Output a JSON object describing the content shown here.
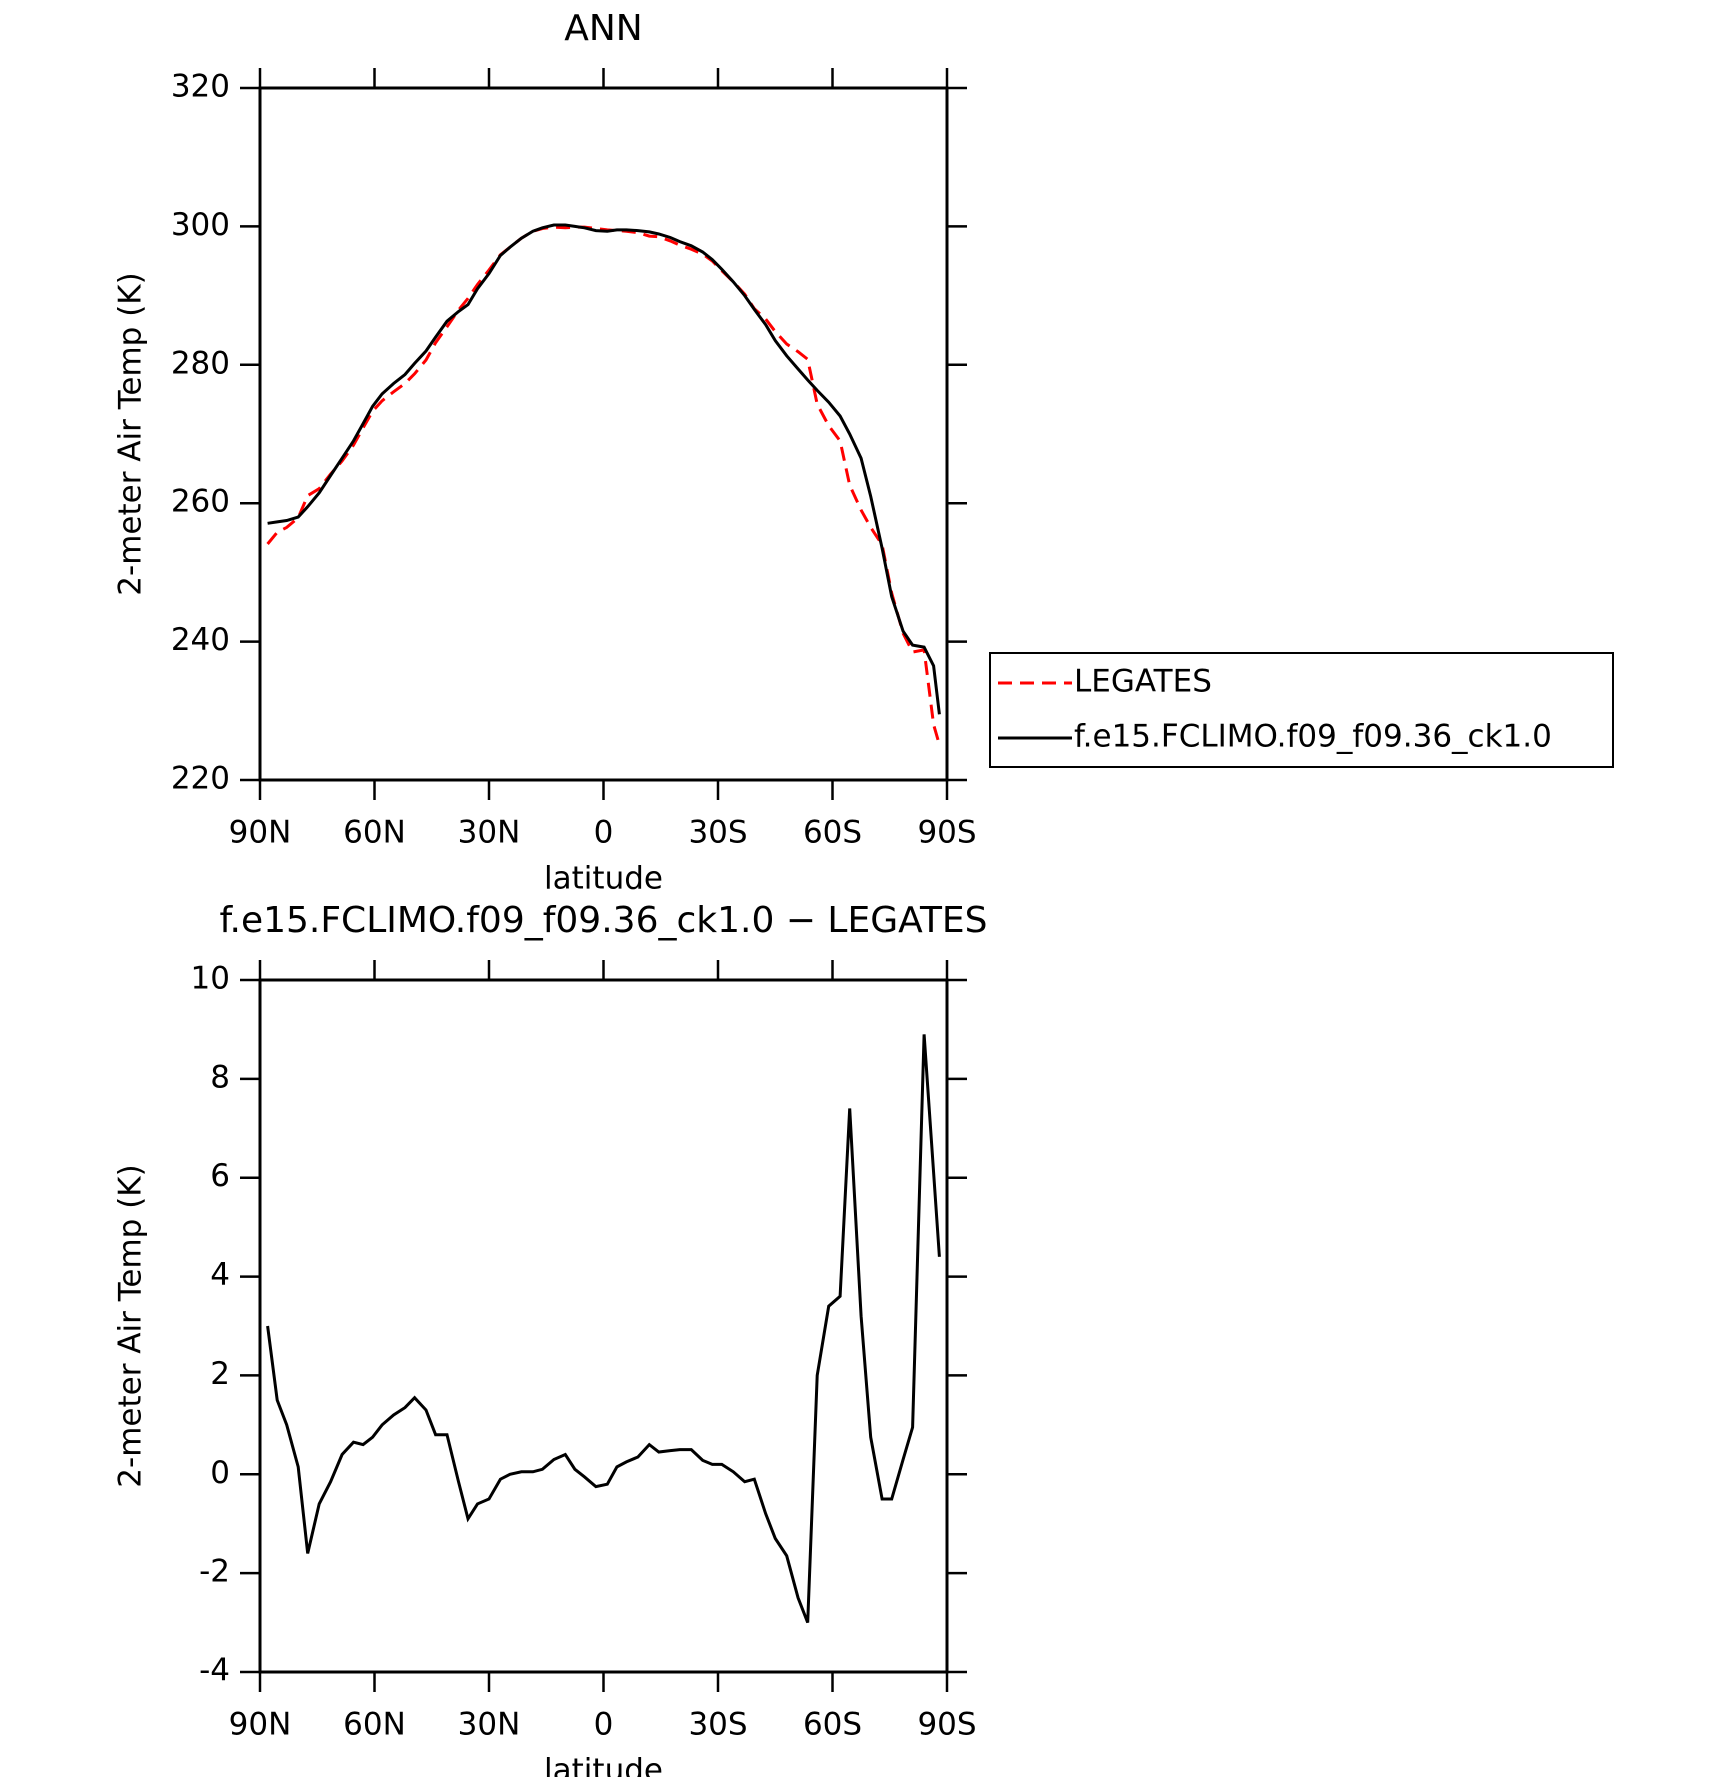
{
  "chart_data": [
    {
      "type": "line",
      "title": "ANN",
      "x_label": "latitude",
      "y_label": "2-meter Air Temp (K)",
      "x": [
        88,
        85.5,
        83,
        80,
        77.5,
        74.5,
        71.5,
        68.5,
        65.5,
        63,
        60.5,
        58,
        55,
        52,
        49.5,
        46.5,
        44,
        41,
        38,
        35.5,
        33,
        30,
        27,
        24.5,
        21.5,
        18.5,
        16,
        13,
        10,
        7.5,
        5,
        2,
        -1,
        -3.5,
        -6,
        -9,
        -12,
        -14.5,
        -17.5,
        -20,
        -23,
        -26,
        -28.5,
        -31,
        -34,
        -37,
        -39.5,
        -42.5,
        -45,
        -48,
        -51,
        -53.5,
        -56,
        -59,
        -62,
        -64.5,
        -67.5,
        -70,
        -73,
        -75.5,
        -78.5,
        -81,
        -84,
        -86.5,
        -88
      ],
      "series": [
        {
          "name": "LEGATES",
          "color": "#ff0000",
          "dash": true,
          "values": [
            254.1,
            255.8,
            256.5,
            257.9,
            261.1,
            262.1,
            264.2,
            266.1,
            268.4,
            270.9,
            273.3,
            274.8,
            276.1,
            277.3,
            278.7,
            280.7,
            283.2,
            285.5,
            287.9,
            289.6,
            291.6,
            293.7,
            295.9,
            297,
            298.3,
            299.3,
            299.7,
            299.9,
            299.8,
            299.9,
            299.9,
            299.7,
            299.5,
            299.4,
            299.3,
            299.1,
            298.6,
            298.5,
            297.9,
            297.3,
            296.7,
            296,
            295,
            293.6,
            292,
            290.2,
            288.1,
            286.6,
            284.8,
            283,
            281.9,
            280.8,
            274.3,
            271.2,
            269,
            262.6,
            259,
            256.5,
            254,
            247,
            241.2,
            238.5,
            238.8,
            228,
            225.1
          ]
        },
        {
          "name": "f.e15.FCLIMO.f09_f09.36_ck1.0",
          "color": "#000000",
          "dash": false,
          "values": [
            257.1,
            257.3,
            257.5,
            258,
            259.5,
            261.5,
            264,
            266.5,
            269,
            271.5,
            274,
            275.8,
            277.3,
            278.6,
            280.2,
            282,
            284,
            286.3,
            287.7,
            288.7,
            291,
            293.2,
            295.8,
            297,
            298.3,
            299.3,
            299.8,
            300.2,
            300.2,
            300,
            299.8,
            299.4,
            299.3,
            299.5,
            299.5,
            299.4,
            299.2,
            298.9,
            298.4,
            297.8,
            297.2,
            296.3,
            295.2,
            293.8,
            292,
            290,
            288,
            285.8,
            283.5,
            281.3,
            279.4,
            277.8,
            276.3,
            274.6,
            272.6,
            270,
            266.5,
            261,
            253.5,
            246.5,
            241.5,
            239.5,
            239.2,
            236.5,
            229.5
          ]
        }
      ],
      "legend": "right",
      "xlim": [
        90,
        -90
      ],
      "xticks": [
        {
          "value": 90,
          "label": "90N"
        },
        {
          "value": 60,
          "label": "60N"
        },
        {
          "value": 30,
          "label": "30N"
        },
        0,
        {
          "value": -30,
          "label": "30S"
        },
        {
          "value": -60,
          "label": "60S"
        },
        {
          "value": -90,
          "label": "90S"
        }
      ],
      "ylim": [
        220,
        320
      ],
      "yticks": [
        220,
        240,
        260,
        280,
        300,
        320
      ]
    },
    {
      "type": "line",
      "title": "f.e15.FCLIMO.f09_f09.36_ck1.0 − LEGATES",
      "x_label": "latitude",
      "y_label": "2-meter Air Temp (K)",
      "x": [
        88,
        85.5,
        83,
        80,
        77.5,
        74.5,
        71.5,
        68.5,
        65.5,
        63,
        60.5,
        58,
        55,
        52,
        49.5,
        46.5,
        44,
        41,
        38,
        35.5,
        33,
        30,
        27,
        24.5,
        21.5,
        18.5,
        16,
        13,
        10,
        7.5,
        5,
        2,
        -1,
        -3.5,
        -6,
        -9,
        -12,
        -14.5,
        -17.5,
        -20,
        -23,
        -26,
        -28.5,
        -31,
        -34,
        -37,
        -39.5,
        -42.5,
        -45,
        -48,
        -51,
        -53.5,
        -56,
        -59,
        -62,
        -64.5,
        -67.5,
        -70,
        -73,
        -75.5,
        -78.5,
        -81,
        -84,
        -88
      ],
      "color": "#000000",
      "values": [
        3,
        1.5,
        1,
        0.15,
        -1.6,
        -0.6,
        -0.15,
        0.4,
        0.65,
        0.6,
        0.75,
        1,
        1.2,
        1.35,
        1.55,
        1.3,
        0.8,
        0.8,
        -0.15,
        -0.9,
        -0.6,
        -0.5,
        -0.1,
        0,
        0.05,
        0.05,
        0.1,
        0.3,
        0.4,
        0.1,
        -0.05,
        -0.25,
        -0.2,
        0.15,
        0.25,
        0.35,
        0.6,
        0.45,
        0.48,
        0.5,
        0.5,
        0.28,
        0.2,
        0.2,
        0.05,
        -0.15,
        -0.1,
        -0.8,
        -1.3,
        -1.65,
        -2.5,
        -3,
        2,
        3.4,
        3.6,
        7.4,
        3.2,
        0.75,
        -0.5,
        -0.5,
        0.3,
        0.95,
        8.9,
        4.4
      ],
      "xlim": [
        90,
        -90
      ],
      "xticks": [
        {
          "value": 90,
          "label": "90N"
        },
        {
          "value": 60,
          "label": "60N"
        },
        {
          "value": 30,
          "label": "30N"
        },
        0,
        {
          "value": -30,
          "label": "30S"
        },
        {
          "value": -60,
          "label": "60S"
        },
        {
          "value": -90,
          "label": "90S"
        }
      ],
      "ylim": [
        -4,
        10
      ],
      "yticks": [
        -4,
        -2,
        0,
        2,
        4,
        6,
        8,
        10
      ]
    }
  ]
}
